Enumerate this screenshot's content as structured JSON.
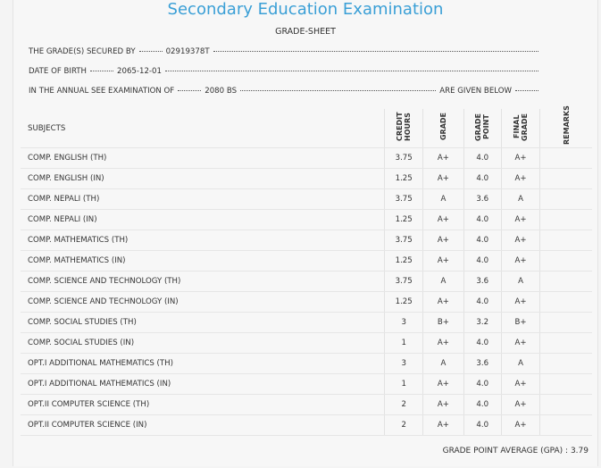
{
  "header": {
    "title": "Secondary Education Examination",
    "subtitle": "GRADE-SHEET"
  },
  "info": {
    "secured_by_label": "THE GRADE(S) SECURED BY",
    "symbol_no": "02919378T",
    "dob_label": "DATE OF BIRTH",
    "dob": "2065-12-01",
    "exam_label": "IN THE ANNUAL SEE EXAMINATION OF",
    "exam_year": "2080 BS",
    "exam_suffix": "ARE GIVEN BELOW"
  },
  "table": {
    "columns": [
      "SUBJECTS",
      "CREDIT HOURS",
      "GRADE",
      "GRADE POINT",
      "FINAL GRADE",
      "REMARKS"
    ],
    "rows": [
      [
        "COMP. ENGLISH (TH)",
        "3.75",
        "A+",
        "4.0",
        "A+"
      ],
      [
        "COMP. ENGLISH (IN)",
        "1.25",
        "A+",
        "4.0",
        "A+"
      ],
      [
        "COMP. NEPALI (TH)",
        "3.75",
        "A",
        "3.6",
        "A"
      ],
      [
        "COMP. NEPALI (IN)",
        "1.25",
        "A+",
        "4.0",
        "A+"
      ],
      [
        "COMP. MATHEMATICS (TH)",
        "3.75",
        "A+",
        "4.0",
        "A+"
      ],
      [
        "COMP. MATHEMATICS (IN)",
        "1.25",
        "A+",
        "4.0",
        "A+"
      ],
      [
        "COMP. SCIENCE AND TECHNOLOGY (TH)",
        "3.75",
        "A",
        "3.6",
        "A"
      ],
      [
        "COMP. SCIENCE AND TECHNOLOGY (IN)",
        "1.25",
        "A+",
        "4.0",
        "A+"
      ],
      [
        "COMP. SOCIAL STUDIES (TH)",
        "3",
        "B+",
        "3.2",
        "B+"
      ],
      [
        "COMP. SOCIAL STUDIES (IN)",
        "1",
        "A+",
        "4.0",
        "A+"
      ],
      [
        "OPT.I ADDITIONAL MATHEMATICS (TH)",
        "3",
        "A",
        "3.6",
        "A"
      ],
      [
        "OPT.I ADDITIONAL MATHEMATICS (IN)",
        "1",
        "A+",
        "4.0",
        "A+"
      ],
      [
        "OPT.II COMPUTER SCIENCE (TH)",
        "2",
        "A+",
        "4.0",
        "A+"
      ],
      [
        "OPT.II COMPUTER SCIENCE (IN)",
        "2",
        "A+",
        "4.0",
        "A+"
      ]
    ]
  },
  "footer": {
    "gpa_label": "GRADE POINT AVERAGE (GPA) :",
    "gpa": "3.79"
  }
}
